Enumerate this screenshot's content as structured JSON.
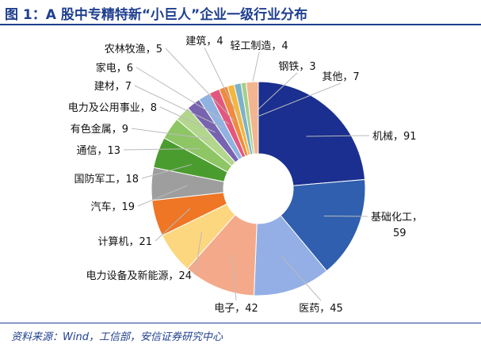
{
  "title": "图 1：A 股中专精特新“小巨人”企业一级行业分布",
  "source": "资料来源：Wind，工信部，安信证券研究中心",
  "chart_data": {
    "type": "pie",
    "donut": true,
    "slices": [
      {
        "label": "机械",
        "value": 91,
        "color": "#1a2f8f"
      },
      {
        "label": "基础化工",
        "value": 59,
        "color": "#2f5fae"
      },
      {
        "label": "医药",
        "value": 45,
        "color": "#93afe5"
      },
      {
        "label": "电子",
        "value": 42,
        "color": "#f4a98a"
      },
      {
        "label": "电力设备及新能源",
        "value": 24,
        "color": "#fcd77f"
      },
      {
        "label": "计算机",
        "value": 21,
        "color": "#ee7624"
      },
      {
        "label": "汽车",
        "value": 19,
        "color": "#9e9e9e"
      },
      {
        "label": "国防军工",
        "value": 18,
        "color": "#4a9c2e"
      },
      {
        "label": "通信",
        "value": 13,
        "color": "#8ec665"
      },
      {
        "label": "有色金属",
        "value": 9,
        "color": "#b3d68d"
      },
      {
        "label": "电力及公用事业",
        "value": 8,
        "color": "#7763b0"
      },
      {
        "label": "建材",
        "value": 7,
        "color": "#8fb2e0"
      },
      {
        "label": "家电",
        "value": 6,
        "color": "#e3577e"
      },
      {
        "label": "农林牧渔",
        "value": 5,
        "color": "#f08a3c"
      },
      {
        "label": "建筑",
        "value": 4,
        "color": "#f4b63f"
      },
      {
        "label": "轻工制造",
        "value": 4,
        "color": "#7ab3c9"
      },
      {
        "label": "钢铁",
        "value": 3,
        "color": "#a6cf8a"
      },
      {
        "label": "其他",
        "value": 7,
        "color": "#f2b58f"
      }
    ]
  }
}
